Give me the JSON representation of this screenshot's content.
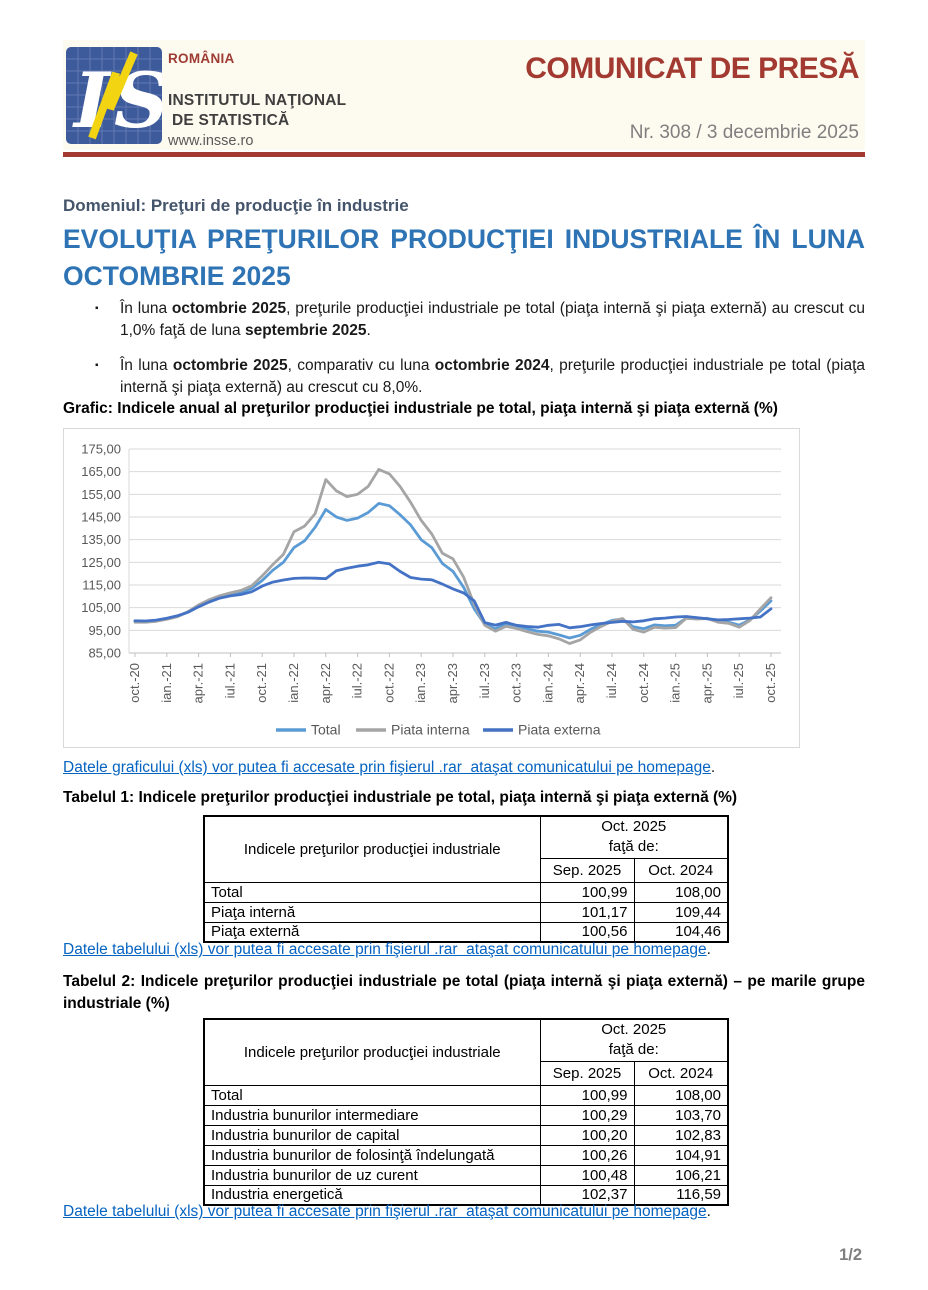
{
  "header": {
    "country": "ROMÂNIA",
    "institute_line1": "INSTITUTUL NAŢIONAL",
    "institute_line2": "DE STATISTICĂ",
    "website": "www.insse.ro",
    "press_release_title": "COMUNICAT DE PRESĂ",
    "release_number": "Nr. 308 / 3 decembrie 2025",
    "colors": {
      "accent_red": "#A23A32",
      "cream_background": "#FDFAEF",
      "logo_blue": "#3D5A9B",
      "logo_yellow": "#F2D413"
    }
  },
  "document": {
    "domain_label": "Domeniul: Preţuri de producţie în industrie",
    "title": "EVOLUŢIA PREŢURILOR PRODUCŢIEI INDUSTRIALE ÎN LUNA OCTOMBRIE 2025",
    "bullets": [
      {
        "segments": [
          {
            "text": "În luna ",
            "bold": false
          },
          {
            "text": "octombrie 2025",
            "bold": true
          },
          {
            "text": ", preţurile producţiei industriale pe total (piaţa internă şi piaţa externă) au crescut cu 1,0% faţă de luna ",
            "bold": false
          },
          {
            "text": "septembrie 2025",
            "bold": true
          },
          {
            "text": ".",
            "bold": false
          }
        ]
      },
      {
        "segments": [
          {
            "text": "În luna ",
            "bold": false
          },
          {
            "text": "octombrie 2025",
            "bold": true
          },
          {
            "text": ", comparativ cu luna ",
            "bold": false
          },
          {
            "text": "octombrie 2024",
            "bold": true
          },
          {
            "text": ", preţurile producţiei industriale pe total (piaţa internă şi piaţa externă) au crescut cu 8,0%.",
            "bold": false
          }
        ]
      }
    ],
    "chart_caption": "Grafic: Indicele anual al preţurilor producţiei industriale pe total, piaţa internă şi piaţa externă (%)",
    "links": {
      "chart_data_link": "Datele graficului (xls) vor putea fi accesate prin fişierul .rar  ataşat comunicatului pe homepage",
      "table_data_link": "Datele tabelului (xls) vor putea fi accesate prin fişierul .rar  ataşat comunicatului pe homepage",
      "suffix": "."
    },
    "page_number": "1/2"
  },
  "chart_data": {
    "type": "line",
    "title": "Indicele anual al preţurilor producţiei industriale pe total, piaţa internă şi piaţa externă (%)",
    "ylim": [
      85,
      175
    ],
    "y_tick_labels": [
      "175,00",
      "165,00",
      "155,00",
      "145,00",
      "135,00",
      "125,00",
      "115,00",
      "105,00",
      "95,00",
      "85,00"
    ],
    "x_tick_labels": [
      "oct.-20",
      "ian.-21",
      "apr.-21",
      "iul.-21",
      "oct.-21",
      "ian.-22",
      "apr.-22",
      "iul.-22",
      "oct.-22",
      "ian.-23",
      "apr.-23",
      "iul.-23",
      "oct.-23",
      "ian.-24",
      "apr.-24",
      "iul.-24",
      "oct.-24",
      "ian.-25",
      "apr.-25",
      "iul.-25",
      "oct.-25"
    ],
    "x_months_between_ticks": 3,
    "grid": true,
    "legend_position": "bottom",
    "series": [
      {
        "name": "Total",
        "color": "#5B9BD5",
        "values": [
          99,
          99,
          99.4,
          100.1,
          101.2,
          103,
          105.8,
          108,
          109.8,
          110.8,
          111.8,
          113.5,
          117,
          121.5,
          125,
          131.5,
          134.5,
          140.5,
          148.3,
          145,
          143.5,
          144.5,
          147,
          151,
          150,
          146,
          141.5,
          135,
          131.5,
          124.5,
          121,
          114,
          104.5,
          97.6,
          95.7,
          98,
          97,
          95.7,
          94.6,
          94.2,
          93,
          91.6,
          92.8,
          95.5,
          97.6,
          99.4,
          100,
          96.6,
          95.7,
          97.4,
          97,
          97.2,
          100.4,
          100.1,
          100.3,
          99,
          98.6,
          97.3,
          99.6,
          103.5,
          108
        ]
      },
      {
        "name": "Piata interna",
        "color": "#A5A5A5",
        "values": [
          98.6,
          98.6,
          99,
          99.9,
          101,
          103.2,
          106.2,
          108.5,
          110.3,
          111.5,
          112.6,
          114.6,
          119,
          124,
          128.5,
          138.5,
          141,
          146.5,
          161.5,
          156.5,
          154,
          155,
          158.5,
          166,
          164,
          158.5,
          151.5,
          143.5,
          137.5,
          129,
          126.5,
          118.5,
          106.5,
          97.2,
          94.6,
          96.8,
          95.8,
          94.4,
          93.2,
          92.6,
          91.2,
          89.2,
          90.8,
          94.2,
          96.8,
          99,
          100.2,
          95.4,
          94.2,
          96.4,
          96,
          96.2,
          100.3,
          100,
          100.2,
          98.6,
          98.1,
          96.4,
          99.3,
          104.5,
          109.4
        ]
      },
      {
        "name": "Piata externa",
        "color": "#4472C4",
        "values": [
          99.2,
          99.1,
          99.5,
          100.3,
          101.4,
          103,
          105.4,
          107.5,
          109.2,
          110.2,
          110.8,
          112,
          114.5,
          116.3,
          117.2,
          117.9,
          118.1,
          118,
          117.8,
          121.3,
          122.4,
          123.3,
          123.9,
          125,
          124.3,
          121,
          118.3,
          117.6,
          117.3,
          115.4,
          113.3,
          111.5,
          108,
          98.4,
          97.3,
          98.5,
          97.2,
          96.7,
          96.4,
          97.2,
          97.6,
          96.1,
          96.6,
          97.4,
          98,
          98.5,
          99,
          98.7,
          99.2,
          100.1,
          100.4,
          100.9,
          101.1,
          100.6,
          100.1,
          99.6,
          99.8,
          100.1,
          100.4,
          100.9,
          104.5
        ]
      }
    ]
  },
  "table1": {
    "caption": "Tabelul 1: Indicele preţurilor producţiei industriale pe total, piaţa internă şi piaţa externă (%)",
    "header": {
      "col1": "Indicele preţurilor producţiei industriale",
      "group_line1": "Oct. 2025",
      "group_line2": "faţă de:",
      "sub": [
        "Sep. 2025",
        "Oct. 2024"
      ]
    },
    "rows": [
      [
        "Total",
        "100,99",
        "108,00"
      ],
      [
        "Piaţa internă",
        "101,17",
        "109,44"
      ],
      [
        "Piaţa externă",
        "100,56",
        "104,46"
      ]
    ]
  },
  "table2": {
    "caption": "Tabelul 2: Indicele preţurilor producţiei industriale pe total (piaţa internă şi piaţa externă) – pe marile grupe industriale (%)",
    "header": {
      "col1": "Indicele preţurilor producţiei industriale",
      "group_line1": "Oct. 2025",
      "group_line2": "faţă de:",
      "sub": [
        "Sep. 2025",
        "Oct. 2024"
      ]
    },
    "rows": [
      [
        "Total",
        "100,99",
        "108,00"
      ],
      [
        "Industria bunurilor intermediare",
        "100,29",
        "103,70"
      ],
      [
        "Industria bunurilor de capital",
        "100,20",
        "102,83"
      ],
      [
        "Industria bunurilor de folosinţă îndelungată",
        "100,26",
        "104,91"
      ],
      [
        "Industria bunurilor de uz curent",
        "100,48",
        "106,21"
      ],
      [
        "Industria energetică",
        "102,37",
        "116,59"
      ]
    ]
  }
}
